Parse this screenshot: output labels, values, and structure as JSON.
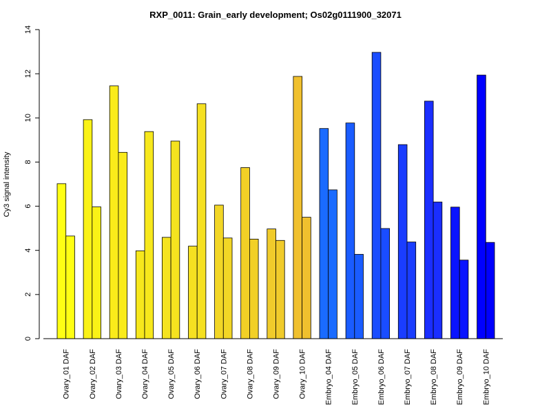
{
  "chart_data": {
    "type": "bar",
    "title": "RXP_0011: Grain_early development; Os02g0111900_32071",
    "xlabel": "",
    "ylabel": "Cy3 signal intensity",
    "ylim": [
      0,
      14
    ],
    "yticks": [
      0,
      2,
      4,
      6,
      8,
      10,
      12,
      14
    ],
    "grid": false,
    "legend": "none",
    "categories": [
      "Ovary_01 DAF",
      "Ovary_02 DAF",
      "Ovary_03 DAF",
      "Ovary_04 DAF",
      "Ovary_05 DAF",
      "Ovary_06 DAF",
      "Ovary_07 DAF",
      "Ovary_08 DAF",
      "Ovary_09 DAF",
      "Ovary_10 DAF",
      "Embryo_04 DAF",
      "Embryo_05 DAF",
      "Embryo_06 DAF",
      "Embryo_07 DAF",
      "Embryo_08 DAF",
      "Embryo_09 DAF",
      "Embryo_10 DAF"
    ],
    "series": [
      {
        "values": [
          7.02,
          9.92,
          11.45,
          3.98,
          4.59,
          4.19,
          6.05,
          7.75,
          4.97,
          11.88,
          9.52,
          9.77,
          12.97,
          8.79,
          10.76,
          5.96,
          11.94
        ]
      },
      {
        "values": [
          4.65,
          5.97,
          8.44,
          9.38,
          8.95,
          10.64,
          4.56,
          4.51,
          4.45,
          5.5,
          6.74,
          3.82,
          4.99,
          4.38,
          6.19,
          3.56,
          4.36
        ]
      }
    ],
    "colors": [
      "#FFFF14",
      "#FAF216",
      "#FAEB1A",
      "#F7E81C",
      "#F5E31F",
      "#F5E021",
      "#F2D626",
      "#F2D026",
      "#F0CB2B",
      "#F0C02E",
      "#1A6BFF",
      "#1A5CFF",
      "#1A4DFF",
      "#1A3DFF",
      "#1A2EFF",
      "#0A14FF",
      "#0000FF"
    ]
  }
}
